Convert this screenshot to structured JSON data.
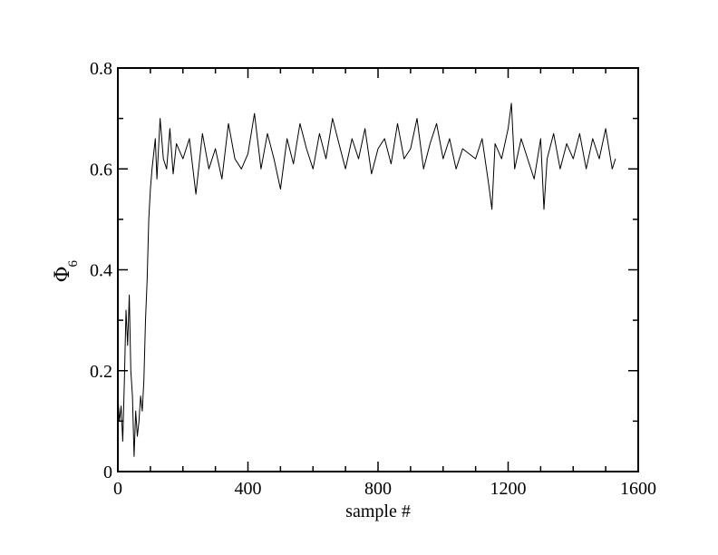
{
  "chart_data": {
    "type": "line",
    "title": "",
    "xlabel": "sample #",
    "ylabel": {
      "symbol": "Φ",
      "subscript": "6"
    },
    "xlim": [
      0,
      1600
    ],
    "ylim": [
      0,
      0.8
    ],
    "x_major_ticks": [
      0,
      400,
      800,
      1200,
      1600
    ],
    "x_tick_labels": [
      "0",
      "400",
      "800",
      "1200",
      "1600"
    ],
    "x_minor_step": 100,
    "y_major_ticks": [
      0,
      0.2,
      0.4,
      0.6,
      0.8
    ],
    "y_tick_labels": [
      "0",
      "0.2",
      "0.4",
      "0.6",
      "0.8"
    ],
    "y_minor_step": 0.1,
    "grid": false,
    "legend": "none",
    "line_color": "#000000",
    "series": [
      {
        "x": [
          0,
          5,
          10,
          15,
          20,
          25,
          30,
          35,
          40,
          45,
          50,
          55,
          60,
          65,
          70,
          75,
          80,
          85,
          90,
          95,
          100,
          105,
          110,
          115,
          120,
          130,
          140,
          150,
          160,
          170,
          180,
          200,
          220,
          240,
          260,
          280,
          300,
          320,
          340,
          360,
          380,
          400,
          420,
          440,
          460,
          480,
          500,
          520,
          540,
          560,
          580,
          600,
          620,
          640,
          660,
          680,
          700,
          720,
          740,
          760,
          780,
          800,
          820,
          840,
          860,
          880,
          900,
          920,
          940,
          960,
          980,
          1000,
          1020,
          1040,
          1060,
          1080,
          1100,
          1120,
          1140,
          1150,
          1160,
          1180,
          1200,
          1210,
          1220,
          1240,
          1260,
          1280,
          1300,
          1310,
          1320,
          1340,
          1360,
          1380,
          1400,
          1420,
          1440,
          1460,
          1480,
          1500,
          1520,
          1530
        ],
        "y": [
          0.15,
          0.1,
          0.13,
          0.06,
          0.18,
          0.32,
          0.25,
          0.35,
          0.2,
          0.15,
          0.03,
          0.12,
          0.07,
          0.1,
          0.15,
          0.12,
          0.18,
          0.3,
          0.38,
          0.5,
          0.56,
          0.6,
          0.63,
          0.66,
          0.58,
          0.7,
          0.62,
          0.6,
          0.68,
          0.59,
          0.65,
          0.62,
          0.66,
          0.55,
          0.67,
          0.6,
          0.64,
          0.58,
          0.69,
          0.62,
          0.6,
          0.63,
          0.71,
          0.6,
          0.67,
          0.62,
          0.56,
          0.66,
          0.61,
          0.69,
          0.64,
          0.6,
          0.67,
          0.62,
          0.7,
          0.65,
          0.6,
          0.66,
          0.62,
          0.68,
          0.59,
          0.64,
          0.66,
          0.61,
          0.69,
          0.62,
          0.64,
          0.7,
          0.6,
          0.65,
          0.69,
          0.62,
          0.66,
          0.6,
          0.64,
          0.63,
          0.62,
          0.66,
          0.57,
          0.52,
          0.65,
          0.62,
          0.68,
          0.73,
          0.6,
          0.66,
          0.62,
          0.58,
          0.66,
          0.52,
          0.62,
          0.67,
          0.6,
          0.65,
          0.62,
          0.67,
          0.6,
          0.66,
          0.62,
          0.68,
          0.6,
          0.62
        ]
      }
    ]
  }
}
